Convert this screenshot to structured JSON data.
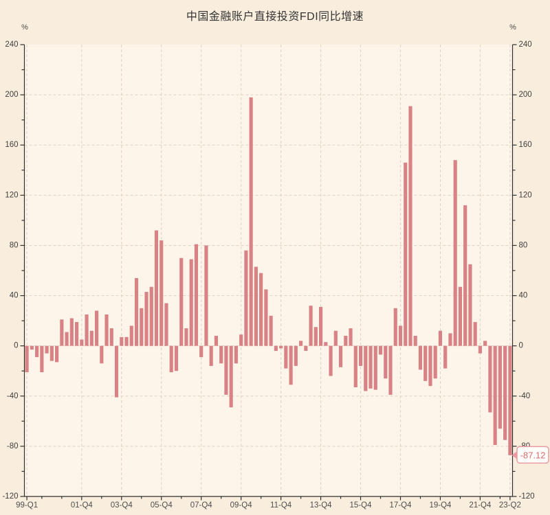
{
  "page": {
    "background": "#f9eedd",
    "plot_background": "#fdf5e9"
  },
  "header": {
    "title": "中国金融账户直接投资FDI同比增速",
    "unit_left": "%",
    "unit_right": "%"
  },
  "chart_data": {
    "type": "bar",
    "title": "中国金融账户直接投资FDI同比增速",
    "unit": "%",
    "ylim": [
      -120,
      240
    ],
    "y_tick_interval": 40,
    "y_minor_tick_interval": 20,
    "y_tick_labels": [
      "240",
      "200",
      "160",
      "120",
      "80",
      "40",
      "0",
      "-40",
      "-80",
      "-120"
    ],
    "grid": true,
    "legend": "none",
    "x_labeled_ticks": [
      "99-Q1",
      "01-Q4",
      "03-Q4",
      "05-Q4",
      "07-Q4",
      "09-Q4",
      "11-Q4",
      "13-Q4",
      "15-Q4",
      "17-Q4",
      "19-Q4",
      "21-Q4",
      "23-Q2"
    ],
    "categories": [
      "99-Q1",
      "99-Q2",
      "99-Q3",
      "99-Q4",
      "00-Q1",
      "00-Q2",
      "00-Q3",
      "00-Q4",
      "01-Q1",
      "01-Q2",
      "01-Q3",
      "01-Q4",
      "02-Q1",
      "02-Q2",
      "02-Q3",
      "02-Q4",
      "03-Q1",
      "03-Q2",
      "03-Q3",
      "03-Q4",
      "04-Q1",
      "04-Q2",
      "04-Q3",
      "04-Q4",
      "05-Q1",
      "05-Q2",
      "05-Q3",
      "05-Q4",
      "06-Q1",
      "06-Q2",
      "06-Q3",
      "06-Q4",
      "07-Q1",
      "07-Q2",
      "07-Q3",
      "07-Q4",
      "08-Q1",
      "08-Q2",
      "08-Q3",
      "08-Q4",
      "09-Q1",
      "09-Q2",
      "09-Q3",
      "09-Q4",
      "10-Q1",
      "10-Q2",
      "10-Q3",
      "10-Q4",
      "11-Q1",
      "11-Q2",
      "11-Q3",
      "11-Q4",
      "12-Q1",
      "12-Q2",
      "12-Q3",
      "12-Q4",
      "13-Q1",
      "13-Q2",
      "13-Q3",
      "13-Q4",
      "14-Q1",
      "14-Q2",
      "14-Q3",
      "14-Q4",
      "15-Q1",
      "15-Q2",
      "15-Q3",
      "15-Q4",
      "16-Q1",
      "16-Q2",
      "16-Q3",
      "16-Q4",
      "17-Q1",
      "17-Q2",
      "17-Q3",
      "17-Q4",
      "18-Q1",
      "18-Q2",
      "18-Q3",
      "18-Q4",
      "19-Q1",
      "19-Q2",
      "19-Q3",
      "19-Q4",
      "20-Q1",
      "20-Q2",
      "20-Q3",
      "20-Q4",
      "21-Q1",
      "21-Q2",
      "21-Q3",
      "21-Q4",
      "22-Q1",
      "22-Q2",
      "22-Q3",
      "22-Q4",
      "23-Q1",
      "23-Q2"
    ],
    "values": [
      -21,
      -3,
      -9,
      -21,
      -6,
      -12,
      -13,
      21,
      11,
      22,
      19,
      5,
      25,
      12,
      28,
      -14,
      25,
      14,
      -41,
      7,
      7,
      16,
      54,
      30,
      43,
      47,
      92,
      84,
      34,
      -21,
      -20,
      70,
      14,
      69,
      81,
      -9,
      80,
      -16,
      8,
      -14,
      -39,
      -49,
      -14,
      9,
      76,
      198,
      63,
      58,
      45,
      24,
      -4,
      -2,
      -18,
      -31,
      -16,
      4,
      -4,
      32,
      15,
      31,
      3,
      -24,
      12,
      -17,
      8,
      14,
      -33,
      -16,
      -36,
      -34,
      -35,
      -7,
      -26,
      -39,
      30,
      16,
      146,
      191,
      8,
      -19,
      -28,
      -32,
      -26,
      12,
      -18,
      10,
      148,
      47,
      112,
      65,
      19,
      -6,
      4,
      -53,
      -79,
      -66,
      -75,
      -87.12
    ],
    "last_point_label": "-87.12",
    "bar_color": "#d88286",
    "axis_color": "#2f2f2f",
    "grid_color": "#dcd3c4",
    "y_label_color": "#3d3d3d",
    "x_label_color": "#4d4d4d",
    "callout": {
      "text": "-87.12",
      "background": "#fffefb",
      "border_color": "#ea9aa0",
      "text_color": "#d96a70"
    }
  }
}
